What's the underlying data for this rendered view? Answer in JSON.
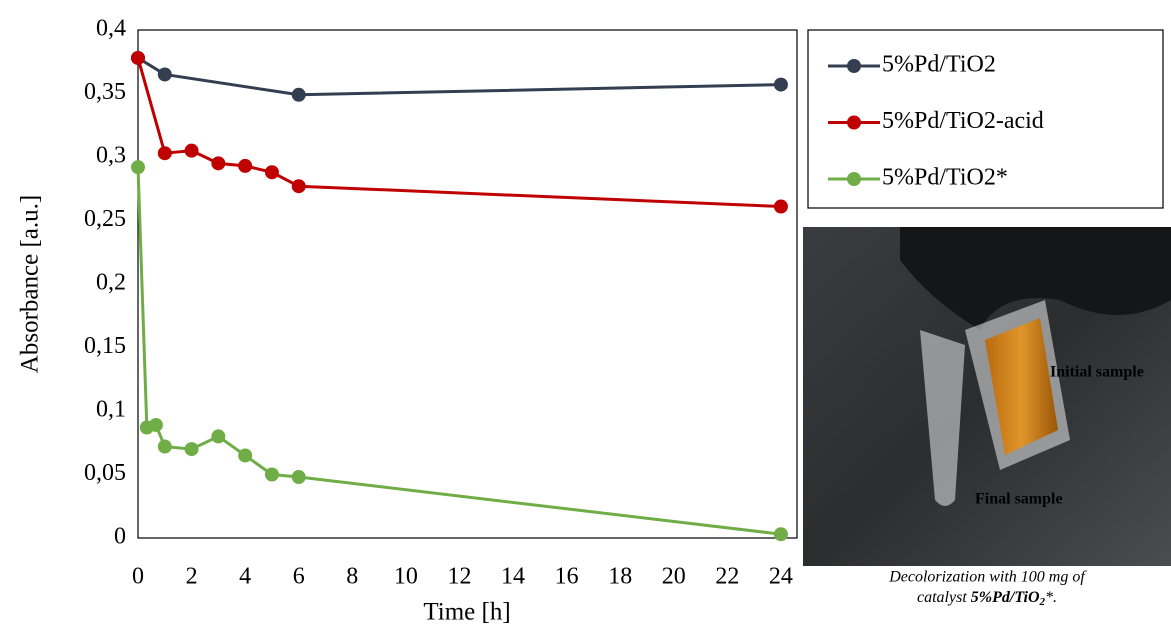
{
  "chart_data": {
    "type": "line",
    "x_label": "Time [h]",
    "y_label": "Absorbance [a.u.]",
    "xlim": [
      0,
      24.6
    ],
    "xticks": [
      0,
      2,
      4,
      6,
      8,
      10,
      12,
      14,
      16,
      18,
      20,
      22,
      24
    ],
    "ylim": [
      0,
      0.4
    ],
    "yticks": [
      0,
      {
        "value": 0.05,
        "label": "0,05"
      },
      {
        "value": 0.1,
        "label": "0,1"
      },
      {
        "value": 0.15,
        "label": "0,15"
      },
      {
        "value": 0.2,
        "label": "0,2"
      },
      {
        "value": 0.25,
        "label": "0,25"
      },
      {
        "value": 0.3,
        "label": "0,3"
      },
      {
        "value": 0.35,
        "label": "0,35"
      },
      {
        "value": 0.4,
        "label": "0,4"
      }
    ],
    "grid": false,
    "legend": "right",
    "series": [
      {
        "name": "5%Pd/TiO2",
        "color": "#333f50",
        "x": [
          0,
          1,
          6,
          24
        ],
        "values": [
          0.378,
          0.365,
          0.349,
          0.357
        ]
      },
      {
        "name": "5%Pd/TiO2-acid",
        "color": "#c00000",
        "x": [
          0,
          1,
          2,
          3,
          4,
          5,
          6,
          24
        ],
        "values": [
          0.378,
          0.303,
          0.305,
          0.295,
          0.293,
          0.288,
          0.277,
          0.261
        ]
      },
      {
        "name": "5%Pd/TiO2*",
        "color": "#70ad47",
        "x": [
          0,
          0.33,
          0.67,
          1,
          2,
          3,
          4,
          5,
          6,
          24
        ],
        "values": [
          0.292,
          0.087,
          0.089,
          0.072,
          0.07,
          0.08,
          0.065,
          0.05,
          0.048,
          0.003
        ]
      }
    ]
  },
  "inset": {
    "labels": [
      "Initial sample",
      "Final sample"
    ],
    "caption": {
      "line1": "Decolorization with 100 mg of",
      "prefix": "catalyst ",
      "bold": "5%Pd/TiO",
      "sub": "2",
      "suffix": "*."
    }
  }
}
